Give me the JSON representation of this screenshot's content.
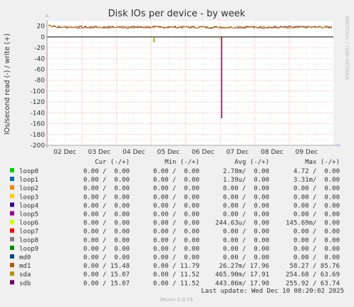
{
  "chart_data": {
    "type": "line",
    "title": "Disk IOs per device - by week",
    "ylabel": "IOs/second read (-) / write (+)",
    "ylim": [
      -200,
      30
    ],
    "yticks": [
      20,
      0,
      -20,
      -40,
      -60,
      -80,
      -100,
      -120,
      -140,
      -160,
      -180,
      -200
    ],
    "xlabels": [
      "02 Dec",
      "03 Dec",
      "04 Dec",
      "05 Dec",
      "06 Dec",
      "07 Dec",
      "08 Dec",
      "09 Dec"
    ],
    "grid": true,
    "side_label": "RRDTOOL / TOBI OETIKER",
    "series": [
      {
        "name": "sdb",
        "color": "#7a1a5a",
        "write_baseline": 17.9,
        "read_spike": {
          "date": "07 Dec",
          "value": -150
        }
      },
      {
        "name": "sda",
        "color": "#b38f00",
        "write_baseline": 17.9,
        "read_spike": {
          "date": "05 Dec",
          "value": -10
        }
      },
      {
        "name": "loop6",
        "color": "#c8e030",
        "read_spike": {
          "date": "07 Dec",
          "value": -5
        }
      }
    ]
  },
  "legend": {
    "headers": {
      "cur": "Cur (-/+)",
      "min": "Min (-/+)",
      "avg": "Avg (-/+)",
      "max": "Max (-/+)"
    },
    "rows": [
      {
        "name": "loop0",
        "color": "#00cc00",
        "cur": "0.00 /  0.00",
        "min": "0.00 /  0.00",
        "avg": "2.78m/  0.00",
        "max": "4.72 /  0.00"
      },
      {
        "name": "loop1",
        "color": "#0066b3",
        "cur": "0.00 /  0.00",
        "min": "0.00 /  0.00",
        "avg": "1.39u/  0.00",
        "max": "3.31m/  0.00"
      },
      {
        "name": "loop2",
        "color": "#ff8000",
        "cur": "0.00 /  0.00",
        "min": "0.00 /  0.00",
        "avg": "0.00 /  0.00",
        "max": "0.00 /  0.00"
      },
      {
        "name": "loop3",
        "color": "#ffcc00",
        "cur": "0.00 /  0.00",
        "min": "0.00 /  0.00",
        "avg": "0.00 /  0.00",
        "max": "0.00 /  0.00"
      },
      {
        "name": "loop4",
        "color": "#330099",
        "cur": "0.00 /  0.00",
        "min": "0.00 /  0.00",
        "avg": "0.00 /  0.00",
        "max": "0.00 /  0.00"
      },
      {
        "name": "loop5",
        "color": "#990099",
        "cur": "0.00 /  0.00",
        "min": "0.00 /  0.00",
        "avg": "0.00 /  0.00",
        "max": "0.00 /  0.00"
      },
      {
        "name": "loop6",
        "color": "#ccff00",
        "cur": "0.00 /  0.00",
        "min": "0.00 /  0.00",
        "avg": "244.63u/  0.00",
        "max": "145.69m/  0.00"
      },
      {
        "name": "loop7",
        "color": "#ff0000",
        "cur": "0.00 /  0.00",
        "min": "0.00 /  0.00",
        "avg": "0.00 /  0.00",
        "max": "0.00 /  0.00"
      },
      {
        "name": "loop8",
        "color": "#808080",
        "cur": "0.00 /  0.00",
        "min": "0.00 /  0.00",
        "avg": "0.00 /  0.00",
        "max": "0.00 /  0.00"
      },
      {
        "name": "loop9",
        "color": "#008f00",
        "cur": "0.00 /  0.00",
        "min": "0.00 /  0.00",
        "avg": "0.00 /  0.00",
        "max": "0.00 /  0.00"
      },
      {
        "name": "md0",
        "color": "#00487d",
        "cur": "0.00 /  0.00",
        "min": "0.00 /  0.00",
        "avg": "0.00 /  0.00",
        "max": "0.00 /  0.00"
      },
      {
        "name": "md1",
        "color": "#b35a00",
        "cur": "0.00 / 15.48",
        "min": "0.00 / 11.79",
        "avg": "26.27m/ 17.96",
        "max": "58.27 / 85.76"
      },
      {
        "name": "sda",
        "color": "#b38f00",
        "cur": "0.00 / 15.07",
        "min": "0.00 / 11.52",
        "avg": "465.90m/ 17.91",
        "max": "254.68 / 63.69"
      },
      {
        "name": "sdb",
        "color": "#6b006b",
        "cur": "0.00 / 15.07",
        "min": "0.00 / 11.52",
        "avg": "443.86m/ 17.90",
        "max": "255.92 / 63.74"
      }
    ]
  },
  "last_update": "Last update: Wed Dec 10 08:20:02 2025",
  "munin_version": "Munin 2.0.73"
}
